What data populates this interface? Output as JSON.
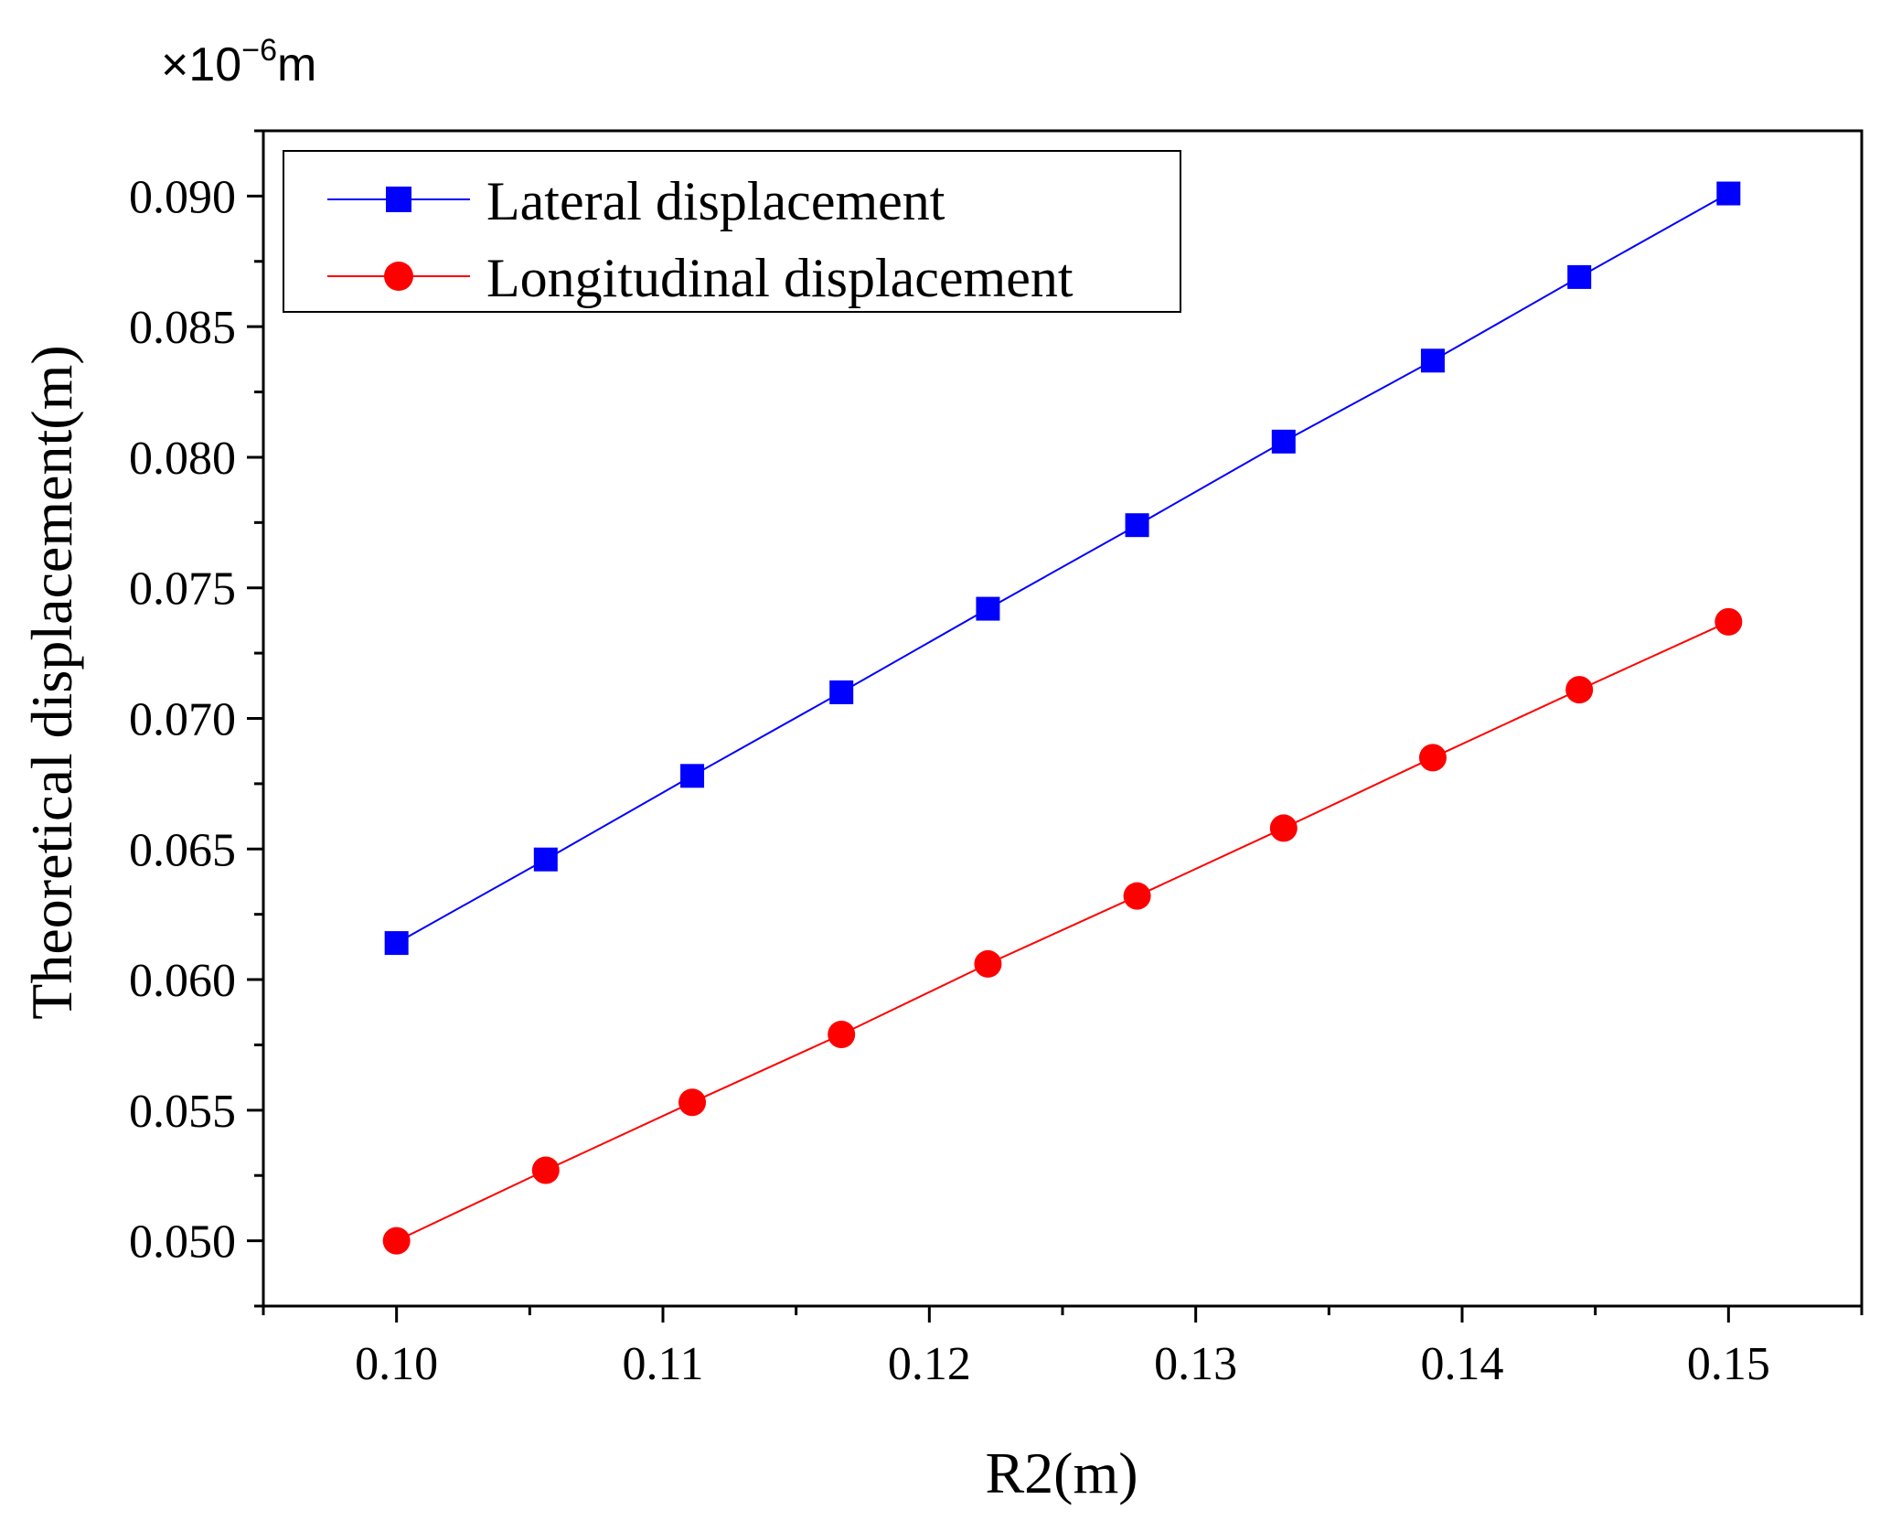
{
  "chart_data": {
    "type": "line",
    "title": "",
    "xlabel": "R2(m)",
    "ylabel": "Theoretical displacement(m)",
    "y_multiplier": {
      "base": "×10",
      "exponent": "−6",
      "unit": "m"
    },
    "xlim": [
      0.095,
      0.155
    ],
    "ylim": [
      0.0475,
      0.0925
    ],
    "x_ticks": [
      "0.10",
      "0.11",
      "0.12",
      "0.13",
      "0.14",
      "0.15"
    ],
    "y_ticks": [
      "0.050",
      "0.055",
      "0.060",
      "0.065",
      "0.070",
      "0.075",
      "0.080",
      "0.085",
      "0.090"
    ],
    "legend_position": "top-left",
    "grid": false,
    "x": [
      0.1,
      0.1056,
      0.1111,
      0.1167,
      0.1222,
      0.1278,
      0.1333,
      0.1389,
      0.1444,
      0.15
    ],
    "series": [
      {
        "name": "Lateral displacement",
        "color": "#0000ff",
        "marker": "square",
        "values": [
          0.0614,
          0.0646,
          0.0678,
          0.071,
          0.0742,
          0.0774,
          0.0806,
          0.0837,
          0.0869,
          0.0901
        ]
      },
      {
        "name": "Longitudinal displacement",
        "color": "#ff0000",
        "marker": "circle",
        "values": [
          0.05,
          0.0527,
          0.0553,
          0.0579,
          0.0606,
          0.0632,
          0.0658,
          0.0685,
          0.0711,
          0.0737
        ]
      }
    ]
  }
}
